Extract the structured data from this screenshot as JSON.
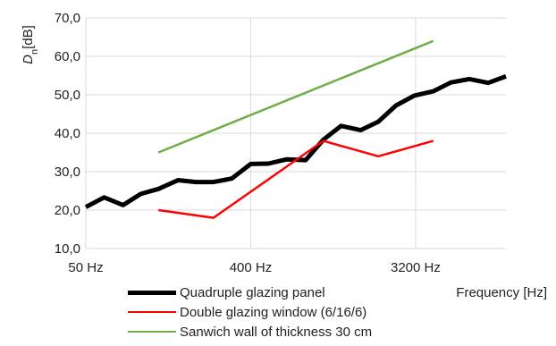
{
  "chart_data": {
    "type": "line",
    "title": "",
    "ylabel_base": "D",
    "ylabel_sub": "n",
    "ylabel_unit": "[dB]",
    "xlabel": "Frequency [Hz]",
    "x_scale": "log",
    "x_unit": "Hz",
    "x_ticks": [
      {
        "value": 50,
        "label": "50 Hz"
      },
      {
        "value": 400,
        "label": "400 Hz"
      },
      {
        "value": 3200,
        "label": "3200 Hz"
      }
    ],
    "xlim": [
      50,
      10000
    ],
    "ylim": [
      10,
      70
    ],
    "y_ticks": [
      {
        "value": 10,
        "label": "10,0"
      },
      {
        "value": 20,
        "label": "20,0"
      },
      {
        "value": 30,
        "label": "30,0"
      },
      {
        "value": 40,
        "label": "40,0"
      },
      {
        "value": 50,
        "label": "50,0"
      },
      {
        "value": 60,
        "label": "60,0"
      },
      {
        "value": 70,
        "label": "70,0"
      }
    ],
    "grid": true,
    "legend_position": "bottom",
    "series": [
      {
        "name": "Quadruple glazing panel",
        "color": "#000000",
        "width": 5,
        "x": [
          50,
          63,
          80,
          100,
          125,
          160,
          200,
          250,
          315,
          400,
          500,
          630,
          800,
          1000,
          1250,
          1600,
          2000,
          2500,
          3150,
          4000,
          5000,
          6300,
          8000,
          10000
        ],
        "y": [
          20.8,
          23.3,
          21.3,
          24.2,
          25.5,
          27.8,
          27.3,
          27.3,
          28.2,
          32.0,
          32.1,
          33.2,
          33.0,
          38.3,
          41.9,
          40.8,
          43.0,
          47.2,
          49.8,
          50.9,
          53.2,
          54.1,
          53.1,
          54.8
        ]
      },
      {
        "name": "Double glazing window (6/16/6)",
        "color": "#ff0000",
        "width": 2.5,
        "x": [
          125,
          250,
          1000,
          2000,
          4000
        ],
        "y": [
          20.0,
          18.0,
          38.0,
          34.0,
          38.0
        ]
      },
      {
        "name": "Sanwich wall of thickness 30 cm",
        "color": "#70ad47",
        "width": 2.5,
        "x": [
          125,
          4000
        ],
        "y": [
          35.0,
          64.0
        ]
      }
    ]
  }
}
